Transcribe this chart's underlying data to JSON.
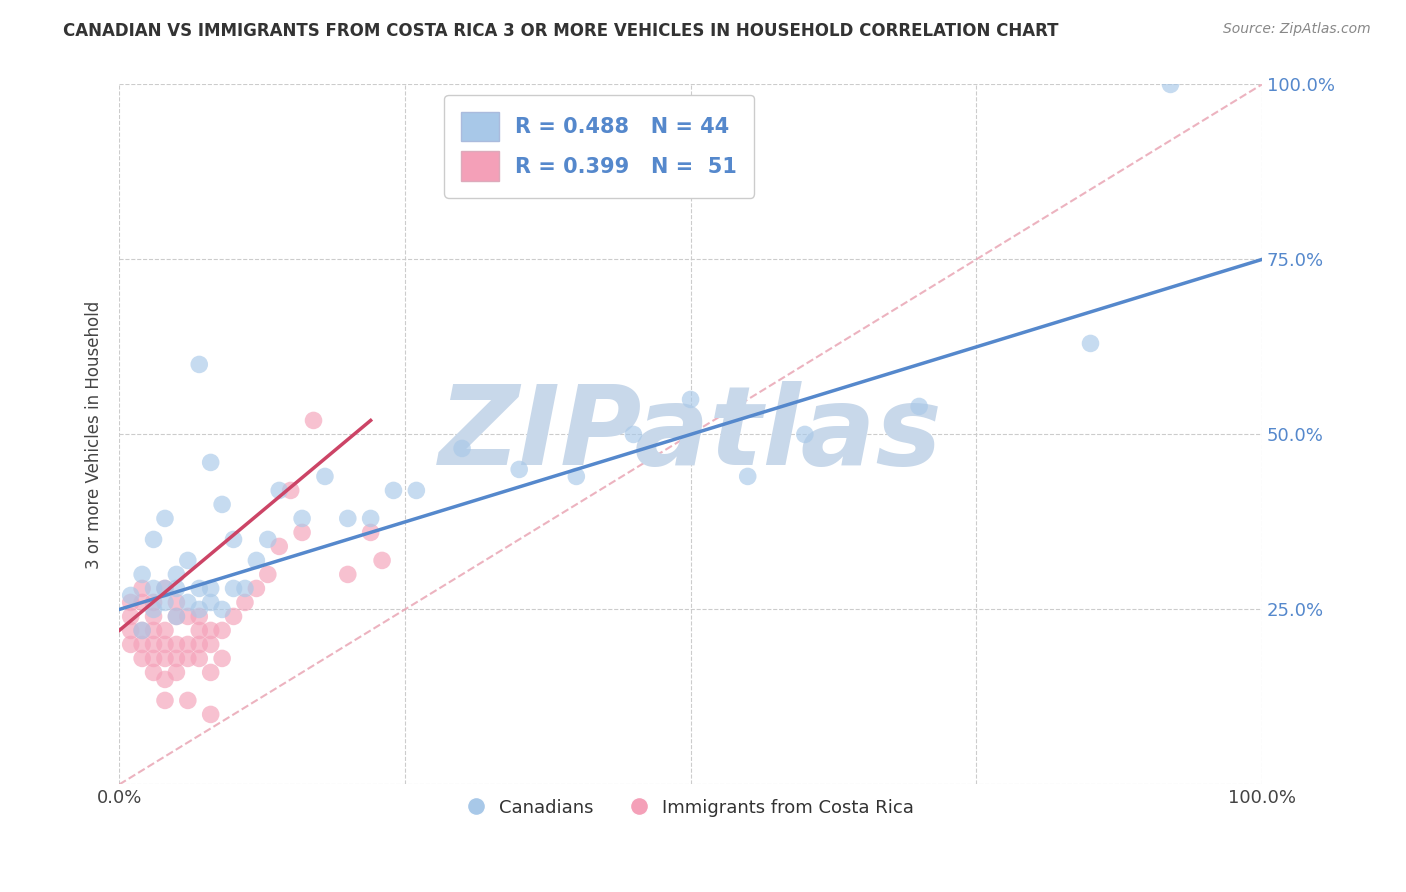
{
  "title": "CANADIAN VS IMMIGRANTS FROM COSTA RICA 3 OR MORE VEHICLES IN HOUSEHOLD CORRELATION CHART",
  "source": "Source: ZipAtlas.com",
  "ylabel": "3 or more Vehicles in Household",
  "xlabel": "",
  "xlim": [
    0.0,
    1.0
  ],
  "ylim": [
    0.0,
    1.0
  ],
  "xticks": [
    0.0,
    0.25,
    0.5,
    0.75,
    1.0
  ],
  "yticks": [
    0.0,
    0.25,
    0.5,
    0.75,
    1.0
  ],
  "xtick_labels": [
    "0.0%",
    "",
    "",
    "",
    "100.0%"
  ],
  "right_ytick_labels": [
    "",
    "25.0%",
    "50.0%",
    "75.0%",
    "100.0%"
  ],
  "legend_labels": [
    "Canadians",
    "Immigrants from Costa Rica"
  ],
  "canadian_color": "#a8c8e8",
  "immigrant_color": "#f4a0b8",
  "canadian_line_color": "#5588cc",
  "immigrant_line_color": "#cc4466",
  "watermark": "ZIPatlas",
  "watermark_color": "#c8d8ea",
  "R_canadian": 0.488,
  "N_canadian": 44,
  "R_immigrant": 0.399,
  "N_immigrant": 51,
  "background_color": "#ffffff",
  "grid_color": "#cccccc",
  "canadian_line_x0": 0.0,
  "canadian_line_y0": 0.25,
  "canadian_line_x1": 1.0,
  "canadian_line_y1": 0.75,
  "immigrant_line_x0": 0.0,
  "immigrant_line_y0": 0.22,
  "immigrant_line_x1": 0.22,
  "immigrant_line_y1": 0.52,
  "canadian_points_x": [
    0.01,
    0.02,
    0.02,
    0.03,
    0.03,
    0.03,
    0.04,
    0.04,
    0.04,
    0.05,
    0.05,
    0.05,
    0.06,
    0.06,
    0.07,
    0.07,
    0.07,
    0.08,
    0.08,
    0.08,
    0.09,
    0.09,
    0.1,
    0.1,
    0.11,
    0.12,
    0.13,
    0.14,
    0.16,
    0.18,
    0.2,
    0.22,
    0.24,
    0.26,
    0.3,
    0.35,
    0.4,
    0.45,
    0.5,
    0.55,
    0.6,
    0.7,
    0.85,
    0.92
  ],
  "canadian_points_y": [
    0.27,
    0.22,
    0.3,
    0.25,
    0.28,
    0.35,
    0.26,
    0.28,
    0.38,
    0.24,
    0.3,
    0.28,
    0.26,
    0.32,
    0.25,
    0.28,
    0.6,
    0.26,
    0.28,
    0.46,
    0.25,
    0.4,
    0.28,
    0.35,
    0.28,
    0.32,
    0.35,
    0.42,
    0.38,
    0.44,
    0.38,
    0.38,
    0.42,
    0.42,
    0.48,
    0.45,
    0.44,
    0.5,
    0.55,
    0.44,
    0.5,
    0.54,
    0.63,
    1.0
  ],
  "immigrant_points_x": [
    0.01,
    0.01,
    0.01,
    0.01,
    0.02,
    0.02,
    0.02,
    0.02,
    0.02,
    0.03,
    0.03,
    0.03,
    0.03,
    0.03,
    0.03,
    0.04,
    0.04,
    0.04,
    0.04,
    0.04,
    0.05,
    0.05,
    0.05,
    0.05,
    0.05,
    0.06,
    0.06,
    0.06,
    0.07,
    0.07,
    0.07,
    0.07,
    0.08,
    0.08,
    0.08,
    0.09,
    0.09,
    0.1,
    0.11,
    0.12,
    0.13,
    0.14,
    0.15,
    0.16,
    0.17,
    0.2,
    0.22,
    0.23,
    0.04,
    0.06,
    0.08
  ],
  "immigrant_points_y": [
    0.2,
    0.22,
    0.24,
    0.26,
    0.18,
    0.2,
    0.22,
    0.26,
    0.28,
    0.16,
    0.18,
    0.2,
    0.22,
    0.24,
    0.26,
    0.15,
    0.18,
    0.2,
    0.22,
    0.28,
    0.16,
    0.18,
    0.2,
    0.24,
    0.26,
    0.18,
    0.2,
    0.24,
    0.18,
    0.2,
    0.22,
    0.24,
    0.16,
    0.2,
    0.22,
    0.18,
    0.22,
    0.24,
    0.26,
    0.28,
    0.3,
    0.34,
    0.42,
    0.36,
    0.52,
    0.3,
    0.36,
    0.32,
    0.12,
    0.12,
    0.1
  ]
}
